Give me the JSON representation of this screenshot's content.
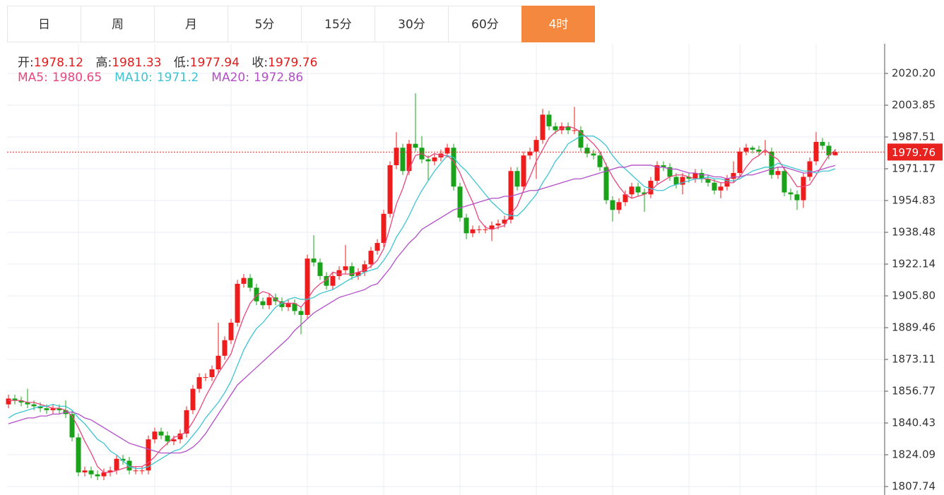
{
  "tabs": [
    "日",
    "周",
    "月",
    "5分",
    "15分",
    "30分",
    "60分",
    "4时"
  ],
  "active_tab": 7,
  "info_labels": [
    "开:",
    "高:",
    "低:",
    "收:"
  ],
  "chart_data": {
    "type": "candlestick",
    "categories": [
      null,
      null,
      null,
      null,
      null,
      null,
      null,
      null,
      null,
      null,
      null,
      null,
      null,
      null,
      null,
      null,
      null,
      null,
      null,
      null,
      null,
      null,
      null,
      null,
      null,
      null,
      null,
      null,
      null,
      null,
      null,
      null,
      null,
      null,
      null,
      null,
      null,
      null,
      null,
      null,
      null,
      null,
      null,
      null,
      null,
      null,
      null,
      null,
      null,
      null,
      null,
      null,
      null,
      null,
      null,
      null,
      null,
      null,
      null,
      null,
      null,
      null,
      null,
      null,
      null,
      null,
      null,
      null,
      null,
      null,
      null,
      null,
      null,
      null,
      null,
      null,
      null,
      null,
      null,
      null,
      null,
      null,
      null,
      null,
      null,
      null,
      null,
      null,
      null,
      null,
      null,
      null,
      null,
      null,
      null,
      null,
      null,
      null,
      null,
      null,
      null,
      null,
      null,
      null,
      null,
      null,
      null,
      null,
      null,
      null,
      null,
      null,
      null,
      null,
      null,
      null,
      null,
      null,
      null,
      null,
      null,
      null,
      null,
      null,
      null,
      null,
      null,
      null,
      null,
      null,
      null
    ],
    "open": [
      1850,
      1853,
      1852,
      1851,
      1850,
      1849,
      1848,
      1847,
      1848,
      1847,
      1845,
      1833,
      1815,
      1816,
      1814,
      1813,
      1815,
      1816,
      1822,
      1821,
      1816,
      1816,
      1816,
      1832,
      1836,
      1834,
      1831,
      1832,
      1835,
      1847,
      1858,
      1864,
      1864,
      1868,
      1875,
      1883,
      1892,
      1912,
      1915,
      1910,
      1903,
      1901,
      1905,
      1903,
      1900,
      1902,
      1898,
      1896,
      1925,
      1923,
      1916,
      1911,
      1916,
      1919,
      1921,
      1916,
      1918,
      1922,
      1929,
      1933,
      1948,
      1973,
      1982,
      1970,
      1984,
      1982,
      1976,
      1975,
      1977,
      1979,
      1982,
      1962,
      1946,
      1938,
      1940,
      1940,
      1940,
      1942,
      1943,
      1945,
      1970,
      1962,
      1978,
      1980,
      1986,
      1999,
      1993,
      1991,
      1993,
      1991,
      1991,
      1982,
      1979,
      1978,
      1972,
      1955,
      1950,
      1954,
      1958,
      1962,
      1959,
      1958,
      1965,
      1973,
      1972,
      1967,
      1963,
      1967,
      1966,
      1969,
      1966,
      1964,
      1960,
      1962,
      1966,
      1969,
      1980,
      1982,
      1981,
      1980,
      1980,
      1968,
      1970,
      1959,
      1958,
      1955,
      1967,
      1975,
      1985,
      1983,
      1978.12
    ],
    "high": [
      1855,
      1855,
      1854,
      1858,
      1852,
      1851,
      1850,
      1850,
      1850,
      1852,
      1847,
      1835,
      1818,
      1818,
      1816,
      1817,
      1818,
      1824,
      1824,
      1823,
      1818,
      1818,
      1834,
      1838,
      1838,
      1836,
      1834,
      1837,
      1849,
      1860,
      1866,
      1866,
      1870,
      1892,
      1885,
      1894,
      1914,
      1917,
      1917,
      1912,
      1905,
      1907,
      1907,
      1905,
      1904,
      1904,
      1900,
      1927,
      1937,
      1925,
      1918,
      1918,
      1921,
      1932,
      1923,
      1920,
      1924,
      1931,
      1935,
      1950,
      1975,
      1990,
      1984,
      1986,
      2010,
      1988,
      1978,
      1979,
      1981,
      1984,
      1984,
      1964,
      1948,
      1942,
      1942,
      1942,
      1944,
      1945,
      1947,
      1972,
      1972,
      1980,
      1982,
      1988,
      2002,
      2001,
      1995,
      1995,
      1995,
      2003,
      1993,
      1984,
      1981,
      1980,
      1974,
      1957,
      1956,
      1960,
      1964,
      1964,
      1961,
      1967,
      1975,
      1975,
      1974,
      1969,
      1969,
      1969,
      1971,
      1971,
      1968,
      1966,
      1964,
      1968,
      1975,
      1982,
      1984,
      1983,
      1983,
      1986,
      1982,
      1972,
      1972,
      1961,
      1960,
      1969,
      1977,
      1990,
      1987,
      1985,
      1981.33
    ],
    "low": [
      1848,
      1850,
      1849,
      1848,
      1847,
      1846,
      1845,
      1845,
      1845,
      1843,
      1831,
      1813,
      1813,
      1812,
      1811,
      1811,
      1813,
      1814,
      1819,
      1814,
      1814,
      1814,
      1814,
      1830,
      1832,
      1829,
      1829,
      1830,
      1833,
      1845,
      1856,
      1862,
      1862,
      1866,
      1873,
      1881,
      1890,
      1910,
      1908,
      1901,
      1899,
      1899,
      1901,
      1898,
      1898,
      1896,
      1886,
      1894,
      1921,
      1914,
      1909,
      1909,
      1914,
      1917,
      1914,
      1914,
      1916,
      1920,
      1927,
      1931,
      1946,
      1971,
      1968,
      1968,
      1980,
      1974,
      1965,
      1973,
      1975,
      1977,
      1960,
      1944,
      1935,
      1936,
      1938,
      1938,
      1934,
      1940,
      1941,
      1943,
      1960,
      1960,
      1976,
      1966,
      1984,
      1991,
      1989,
      1989,
      1989,
      1989,
      1980,
      1977,
      1976,
      1970,
      1953,
      1944,
      1948,
      1952,
      1956,
      1957,
      1949,
      1956,
      1963,
      1970,
      1965,
      1961,
      1958,
      1964,
      1964,
      1964,
      1962,
      1958,
      1956,
      1960,
      1964,
      1967,
      1978,
      1979,
      1978,
      1978,
      1966,
      1966,
      1957,
      1955,
      1950,
      1951,
      1965,
      1973,
      1981,
      1976,
      1977.94
    ],
    "close": [
      1853,
      1852,
      1851,
      1850,
      1849,
      1848,
      1847,
      1848,
      1847,
      1845,
      1833,
      1815,
      1816,
      1814,
      1813,
      1815,
      1816,
      1822,
      1821,
      1816,
      1816,
      1816,
      1832,
      1836,
      1834,
      1831,
      1832,
      1835,
      1847,
      1858,
      1864,
      1864,
      1868,
      1875,
      1883,
      1892,
      1912,
      1915,
      1910,
      1903,
      1901,
      1905,
      1903,
      1900,
      1902,
      1898,
      1896,
      1925,
      1923,
      1916,
      1911,
      1916,
      1919,
      1921,
      1916,
      1918,
      1922,
      1929,
      1933,
      1948,
      1973,
      1982,
      1970,
      1984,
      1982,
      1976,
      1975,
      1977,
      1979,
      1982,
      1962,
      1946,
      1938,
      1940,
      1940,
      1940,
      1942,
      1943,
      1945,
      1970,
      1962,
      1978,
      1980,
      1986,
      1999,
      1993,
      1991,
      1993,
      1991,
      1991,
      1982,
      1979,
      1978,
      1972,
      1955,
      1950,
      1954,
      1958,
      1962,
      1959,
      1958,
      1965,
      1973,
      1972,
      1967,
      1963,
      1967,
      1966,
      1969,
      1966,
      1964,
      1960,
      1962,
      1966,
      1969,
      1980,
      1982,
      1981,
      1980,
      1980,
      1968,
      1970,
      1959,
      1958,
      1955,
      1967,
      1975,
      1985,
      1983,
      1978,
      1979.76
    ],
    "up_color": "#ee1c1c",
    "down_color": "#1aa31a",
    "series": [
      {
        "name": "MA5:",
        "color": "#e8467c",
        "values": [
          1852,
          1852,
          1852,
          1851,
          1851,
          1850,
          1849,
          1848,
          1848,
          1847,
          1844,
          1838,
          1831,
          1825,
          1818,
          1815,
          1815,
          1816,
          1817,
          1818,
          1818,
          1818,
          1820,
          1823,
          1827,
          1830,
          1833,
          1834,
          1836,
          1841,
          1847,
          1854,
          1860,
          1866,
          1871,
          1876,
          1886,
          1895,
          1902,
          1906,
          1908,
          1907,
          1904,
          1902,
          1902,
          1902,
          1900,
          1904,
          1909,
          1912,
          1914,
          1918,
          1917,
          1917,
          1917,
          1918,
          1919,
          1921,
          1924,
          1930,
          1941,
          1953,
          1961,
          1971,
          1978,
          1979,
          1977,
          1979,
          1978,
          1978,
          1975,
          1969,
          1961,
          1954,
          1945,
          1941,
          1940,
          1941,
          1942,
          1948,
          1952,
          1960,
          1967,
          1975,
          1981,
          1987,
          1990,
          1992,
          1993,
          1992,
          1990,
          1987,
          1984,
          1980,
          1973,
          1967,
          1962,
          1958,
          1956,
          1957,
          1958,
          1960,
          1963,
          1965,
          1967,
          1968,
          1968,
          1967,
          1966,
          1966,
          1966,
          1965,
          1964,
          1964,
          1964,
          1967,
          1972,
          1976,
          1978,
          1981,
          1978,
          1976,
          1971,
          1967,
          1962,
          1962,
          1963,
          1968,
          1973,
          1978,
          1980.65
        ]
      },
      {
        "name": "MA10:",
        "color": "#3ec4d2",
        "values": [
          1843,
          1845,
          1846,
          1847,
          1848,
          1849,
          1849,
          1850,
          1849,
          1849,
          1847,
          1843,
          1840,
          1836,
          1832,
          1830,
          1826,
          1824,
          1821,
          1818,
          1817,
          1817,
          1818,
          1820,
          1822,
          1824,
          1826,
          1827,
          1830,
          1834,
          1838,
          1843,
          1847,
          1851,
          1856,
          1862,
          1870,
          1878,
          1884,
          1889,
          1892,
          1896,
          1900,
          1902,
          1904,
          1905,
          1904,
          1904,
          1905,
          1907,
          1908,
          1909,
          1911,
          1913,
          1915,
          1916,
          1918,
          1919,
          1920,
          1924,
          1929,
          1936,
          1941,
          1947,
          1954,
          1960,
          1965,
          1970,
          1974,
          1978,
          1977,
          1973,
          1970,
          1966,
          1962,
          1958,
          1954,
          1951,
          1948,
          1947,
          1947,
          1950,
          1954,
          1958,
          1964,
          1969,
          1975,
          1979,
          1984,
          1986,
          1988,
          1988,
          1988,
          1986,
          1983,
          1978,
          1974,
          1971,
          1968,
          1965,
          1962,
          1961,
          1960,
          1960,
          1962,
          1963,
          1964,
          1965,
          1966,
          1966,
          1967,
          1966,
          1966,
          1965,
          1965,
          1966,
          1968,
          1970,
          1971,
          1972,
          1972,
          1974,
          1973,
          1972,
          1971,
          1970,
          1970,
          1969,
          1970,
          1970,
          1971.2
        ]
      },
      {
        "name": "MA20:",
        "color": "#b24fc6",
        "values": [
          1840,
          1841,
          1842,
          1843,
          1843,
          1844,
          1844,
          1845,
          1845,
          1846,
          1846,
          1845,
          1843,
          1842,
          1840,
          1838,
          1836,
          1834,
          1832,
          1830,
          1829,
          1828,
          1827,
          1826,
          1825,
          1825,
          1825,
          1825,
          1826,
          1828,
          1831,
          1835,
          1840,
          1845,
          1850,
          1855,
          1860,
          1863,
          1866,
          1869,
          1872,
          1875,
          1878,
          1881,
          1884,
          1888,
          1891,
          1894,
          1897,
          1899,
          1901,
          1903,
          1905,
          1906,
          1907,
          1908,
          1909,
          1911,
          1912,
          1916,
          1920,
          1925,
          1929,
          1933,
          1936,
          1940,
          1942,
          1944,
          1946,
          1948,
          1950,
          1951,
          1952,
          1953,
          1954,
          1955,
          1956,
          1956,
          1957,
          1957,
          1958,
          1959,
          1960,
          1960,
          1961,
          1962,
          1963,
          1964,
          1965,
          1966,
          1966,
          1967,
          1968,
          1969,
          1970,
          1971,
          1972,
          1972,
          1973,
          1973,
          1973,
          1973,
          1972,
          1972,
          1971,
          1971,
          1970,
          1969,
          1969,
          1968,
          1968,
          1967,
          1967,
          1966,
          1967,
          1967,
          1968,
          1968,
          1969,
          1970,
          1971,
          1972,
          1972,
          1971,
          1970,
          1969,
          1969,
          1970,
          1971,
          1972,
          1972.86
        ]
      }
    ],
    "ylim": [
      1803.38,
      2035.45
    ],
    "yticks": [
      {
        "value": 2020.2,
        "label": "2020.20"
      },
      2003.85,
      1987.51,
      1971.17,
      1954.83,
      1938.48,
      1922.14,
      {
        "value": 1905.8,
        "label": "1905.80"
      },
      1889.46,
      1873.11,
      1856.77,
      1840.43,
      1824.09,
      1807.74
    ],
    "xgrid": [
      11,
      23,
      35,
      47,
      59,
      71,
      83,
      95,
      107,
      115,
      127
    ],
    "grid": true,
    "last_price_line": true,
    "last_price_color": "#e8231f"
  }
}
